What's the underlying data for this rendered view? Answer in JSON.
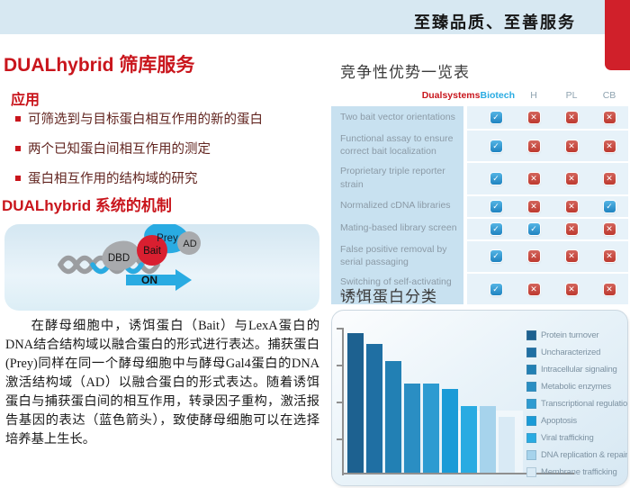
{
  "header": {
    "slogan": "至臻品质、至善服务"
  },
  "left": {
    "title": "DUALhybrid 筛库服务",
    "applications_heading": "应用",
    "applications": [
      "可筛选到与目标蛋白相互作用的新的蛋白",
      "两个已知蛋白间相互作用的测定",
      "蛋白相互作用的结构域的研究"
    ],
    "mechanism_heading": "DUALhybrid 系统的机制",
    "diagram": {
      "labels": {
        "dbd": "DBD",
        "bait": "Bait",
        "prey": "Prey",
        "ad": "AD",
        "on": "ON"
      }
    },
    "paragraph": "在酵母细胞中，诱饵蛋白（Bait）与LexA蛋白的DNA结合结构域以融合蛋白的形式进行表达。捕获蛋白(Prey)同样在同一个酵母细胞中与酵母Gal4蛋白的DNA激活结构域（AD）以融合蛋白的形式表达。随着诱饵蛋白与捕获蛋白间的相互作用，转录因子重构，激活报告基因的表达（蓝色箭头），致使酵母细胞可以在选择培养基上生长。"
  },
  "table": {
    "title": "竞争性优势一览表",
    "brand": {
      "part1": "Dualsystems",
      "part2": "Biotech"
    },
    "columns": [
      "H",
      "PL",
      "CB"
    ],
    "rows": [
      {
        "label": "Two bait vector orientations",
        "values": [
          true,
          false,
          false,
          false
        ]
      },
      {
        "label": "Functional assay to ensure correct bait localization",
        "values": [
          true,
          false,
          false,
          false
        ]
      },
      {
        "label": "Proprietary triple reporter strain",
        "values": [
          true,
          false,
          false,
          false
        ]
      },
      {
        "label": "Normalized cDNA libraries",
        "values": [
          true,
          false,
          false,
          true
        ]
      },
      {
        "label": "Mating-based library screen",
        "values": [
          true,
          true,
          false,
          false
        ]
      },
      {
        "label": "False positive removal by serial passaging",
        "values": [
          true,
          false,
          false,
          false
        ]
      },
      {
        "label": "Switching of self-activating baits to",
        "values": [
          true,
          false,
          false,
          false
        ]
      }
    ]
  },
  "icons": {
    "check": "✓",
    "cross": "✕"
  },
  "chart_data": {
    "type": "bar",
    "title": "诱饵蛋白分类",
    "categories": [
      "Protein turnover",
      "Uncharacterized",
      "Intracellular signaling",
      "Metabolic enzymes",
      "Transcriptional regulation",
      "Apoptosis",
      "Viral trafficking",
      "DNA replication & repair",
      "Membrane trafficking"
    ],
    "values": [
      100,
      92,
      80,
      64,
      64,
      60,
      48,
      48,
      40
    ],
    "value_note": "relative bar heights in % of tallest bar; no numeric axis labels shown in figure",
    "bar_colors": [
      "#1d6190",
      "#1f6fa3",
      "#2280b4",
      "#2a8ec3",
      "#2d9bd1",
      "#1a9bd7",
      "#29abe2",
      "#a6d3ec",
      "#d9eaf5"
    ],
    "xlabel": "",
    "ylabel": "",
    "legend_position": "right",
    "grid": false
  },
  "colors": {
    "accent_red": "#c9151c",
    "corner_tab_red": "#d0202a",
    "header_bar_blue": "#d7e8f2",
    "brand_red": "#c8171e",
    "brand_blue": "#29abe2",
    "check_blue": "#2e8fc6",
    "cross_red": "#c24238",
    "table_label_bg": "#c8e1f0",
    "table_values_bg": "#e7f2f9"
  }
}
